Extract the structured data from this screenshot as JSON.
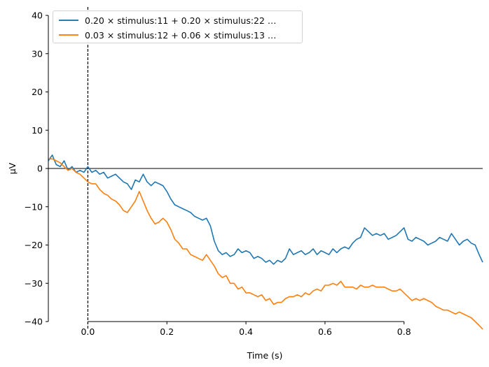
{
  "chart_data": {
    "type": "line",
    "title": "",
    "xlabel": "Time (s)",
    "ylabel": "µV",
    "xlim": [
      -0.1,
      0.999
    ],
    "ylim": [
      -40,
      40
    ],
    "x_ticks": [
      0.0,
      0.2,
      0.4,
      0.6,
      0.8
    ],
    "x_tick_labels": [
      "0.0",
      "0.2",
      "0.4",
      "0.6",
      "0.8"
    ],
    "y_ticks": [
      -40,
      -30,
      -20,
      -10,
      0,
      10,
      20,
      30,
      40
    ],
    "y_tick_labels": [
      "−40",
      "−30",
      "−20",
      "−10",
      "0",
      "10",
      "20",
      "30",
      "40"
    ],
    "grid": false,
    "legend_position": "top-left",
    "event_line_x": 0.0,
    "zero_line": true,
    "series": [
      {
        "name": "0.20 × stimulus:11 + 0.20 × stimulus:22  …",
        "color": "#1f77b4",
        "x": [
          -0.1,
          -0.09,
          -0.08,
          -0.07,
          -0.06,
          -0.05,
          -0.04,
          -0.03,
          -0.02,
          -0.01,
          0.0,
          0.01,
          0.02,
          0.03,
          0.04,
          0.05,
          0.06,
          0.07,
          0.08,
          0.09,
          0.1,
          0.11,
          0.12,
          0.13,
          0.14,
          0.15,
          0.16,
          0.17,
          0.18,
          0.19,
          0.2,
          0.21,
          0.22,
          0.23,
          0.24,
          0.25,
          0.26,
          0.27,
          0.28,
          0.29,
          0.3,
          0.31,
          0.32,
          0.33,
          0.34,
          0.35,
          0.36,
          0.37,
          0.38,
          0.39,
          0.4,
          0.41,
          0.42,
          0.43,
          0.44,
          0.45,
          0.46,
          0.47,
          0.48,
          0.49,
          0.5,
          0.51,
          0.52,
          0.53,
          0.54,
          0.55,
          0.56,
          0.57,
          0.58,
          0.59,
          0.6,
          0.61,
          0.62,
          0.63,
          0.64,
          0.65,
          0.66,
          0.67,
          0.68,
          0.69,
          0.7,
          0.71,
          0.72,
          0.73,
          0.74,
          0.75,
          0.76,
          0.77,
          0.78,
          0.79,
          0.8,
          0.81,
          0.82,
          0.83,
          0.84,
          0.85,
          0.86,
          0.87,
          0.88,
          0.89,
          0.9,
          0.91,
          0.92,
          0.93,
          0.94,
          0.95,
          0.96,
          0.97,
          0.98,
          0.99,
          0.999
        ],
        "values": [
          2.0,
          3.5,
          1.0,
          0.5,
          2.0,
          -0.5,
          0.5,
          -1.0,
          -0.5,
          -1.0,
          0.5,
          -1.0,
          -0.5,
          -1.5,
          -1.0,
          -2.5,
          -2.0,
          -1.5,
          -2.5,
          -3.5,
          -4.0,
          -5.5,
          -3.0,
          -3.5,
          -1.5,
          -3.5,
          -4.5,
          -3.5,
          -4.0,
          -4.5,
          -6.0,
          -8.0,
          -9.5,
          -10.0,
          -10.5,
          -11.0,
          -11.5,
          -12.5,
          -13.0,
          -13.5,
          -13.0,
          -15.0,
          -19.0,
          -21.5,
          -22.5,
          -22.0,
          -23.0,
          -22.5,
          -21.0,
          -22.0,
          -21.5,
          -22.0,
          -23.5,
          -23.0,
          -23.5,
          -24.5,
          -24.0,
          -25.0,
          -24.0,
          -24.5,
          -23.5,
          -21.0,
          -22.5,
          -22.0,
          -21.5,
          -22.5,
          -22.0,
          -21.0,
          -22.5,
          -21.5,
          -22.0,
          -22.5,
          -21.0,
          -22.0,
          -21.0,
          -20.5,
          -21.0,
          -19.5,
          -18.5,
          -18.0,
          -15.5,
          -16.5,
          -17.5,
          -17.0,
          -17.5,
          -17.0,
          -18.5,
          -18.0,
          -17.5,
          -16.5,
          -15.5,
          -18.5,
          -19.0,
          -18.0,
          -18.5,
          -19.0,
          -20.0,
          -19.5,
          -19.0,
          -18.0,
          -18.5,
          -19.0,
          -17.0,
          -18.5,
          -20.0,
          -19.0,
          -18.5,
          -19.5,
          -20.0,
          -22.5,
          -24.5
        ]
      },
      {
        "name": "0.03 × stimulus:12 + 0.06 × stimulus:13  …",
        "color": "#ff7f0e",
        "x": [
          -0.1,
          -0.09,
          -0.08,
          -0.07,
          -0.06,
          -0.05,
          -0.04,
          -0.03,
          -0.02,
          -0.01,
          0.0,
          0.01,
          0.02,
          0.03,
          0.04,
          0.05,
          0.06,
          0.07,
          0.08,
          0.09,
          0.1,
          0.11,
          0.12,
          0.13,
          0.14,
          0.15,
          0.16,
          0.17,
          0.18,
          0.19,
          0.2,
          0.21,
          0.22,
          0.23,
          0.24,
          0.25,
          0.26,
          0.27,
          0.28,
          0.29,
          0.3,
          0.31,
          0.32,
          0.33,
          0.34,
          0.35,
          0.36,
          0.37,
          0.38,
          0.39,
          0.4,
          0.41,
          0.42,
          0.43,
          0.44,
          0.45,
          0.46,
          0.47,
          0.48,
          0.49,
          0.5,
          0.51,
          0.52,
          0.53,
          0.54,
          0.55,
          0.56,
          0.57,
          0.58,
          0.59,
          0.6,
          0.61,
          0.62,
          0.63,
          0.64,
          0.65,
          0.66,
          0.67,
          0.68,
          0.69,
          0.7,
          0.71,
          0.72,
          0.73,
          0.74,
          0.75,
          0.76,
          0.77,
          0.78,
          0.79,
          0.8,
          0.81,
          0.82,
          0.83,
          0.84,
          0.85,
          0.86,
          0.87,
          0.88,
          0.89,
          0.9,
          0.91,
          0.92,
          0.93,
          0.94,
          0.95,
          0.96,
          0.97,
          0.98,
          0.99,
          0.999
        ],
        "values": [
          2.5,
          2.5,
          2.0,
          1.5,
          0.5,
          -0.5,
          0.0,
          -1.0,
          -1.5,
          -2.5,
          -3.5,
          -4.0,
          -4.0,
          -5.5,
          -6.5,
          -7.0,
          -8.0,
          -8.5,
          -9.5,
          -11.0,
          -11.5,
          -10.0,
          -8.5,
          -6.0,
          -8.5,
          -11.0,
          -13.0,
          -14.5,
          -14.0,
          -13.0,
          -14.0,
          -16.0,
          -18.5,
          -19.5,
          -21.0,
          -21.0,
          -22.5,
          -23.0,
          -23.5,
          -24.0,
          -22.5,
          -24.0,
          -25.5,
          -27.5,
          -28.5,
          -28.0,
          -30.0,
          -30.0,
          -31.5,
          -31.0,
          -32.5,
          -32.5,
          -33.0,
          -33.5,
          -33.0,
          -34.5,
          -34.0,
          -35.5,
          -35.0,
          -35.0,
          -34.0,
          -33.5,
          -33.5,
          -33.0,
          -33.5,
          -32.5,
          -33.0,
          -32.0,
          -31.5,
          -32.0,
          -30.5,
          -30.5,
          -30.0,
          -30.5,
          -29.5,
          -31.0,
          -31.0,
          -31.0,
          -31.5,
          -30.5,
          -31.0,
          -31.0,
          -30.5,
          -31.0,
          -31.0,
          -31.0,
          -31.5,
          -32.0,
          -32.0,
          -31.5,
          -32.5,
          -33.5,
          -34.5,
          -34.0,
          -34.5,
          -34.0,
          -34.5,
          -35.0,
          -36.0,
          -36.5,
          -37.0,
          -37.0,
          -37.5,
          -38.0,
          -37.5,
          -38.0,
          -38.5,
          -39.0,
          -40.0,
          -41.0,
          -42.0
        ]
      }
    ]
  }
}
